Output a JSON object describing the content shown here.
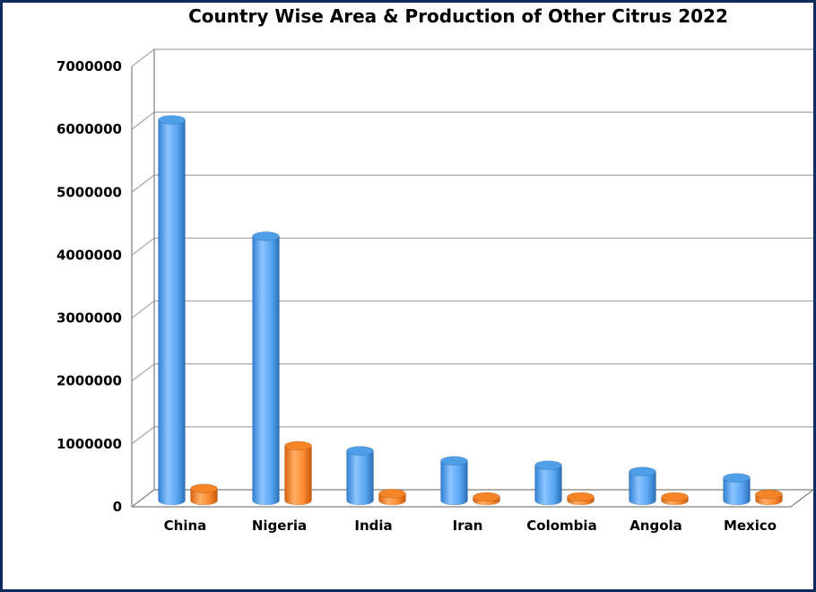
{
  "chart_data": {
    "type": "bar",
    "style": "3d-cylinder",
    "title": "Country Wise Area & Production of Other Citrus 2022",
    "xlabel": "",
    "ylabel": "",
    "categories": [
      "China",
      "Nigeria",
      "India",
      "Iran",
      "Colombia",
      "Angola",
      "Mexico"
    ],
    "series": [
      {
        "values": [
          6050000,
          4200000,
          790000,
          630000,
          560000,
          460000,
          360000
        ],
        "color": "#4f9fe8"
      },
      {
        "values": [
          190000,
          870000,
          110000,
          40000,
          50000,
          50000,
          100000
        ],
        "color": "#f58426"
      }
    ],
    "ylim": [
      0,
      7000000
    ],
    "yticks": [
      "0",
      "1000000",
      "2000000",
      "3000000",
      "4000000",
      "5000000",
      "6000000",
      "7000000"
    ],
    "grid": true,
    "legend": "none"
  }
}
